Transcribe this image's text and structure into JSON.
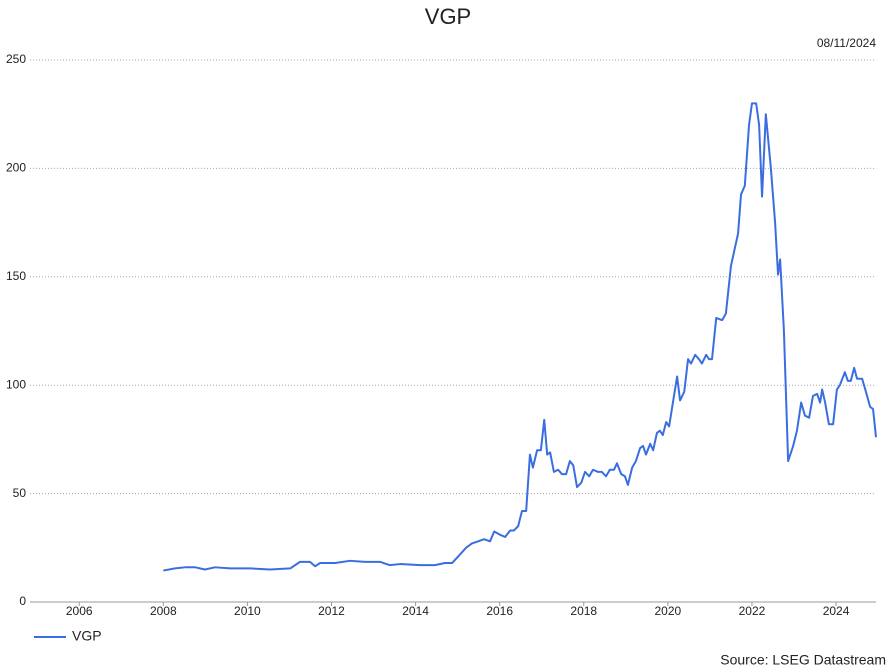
{
  "chart_data": {
    "type": "line",
    "title": "VGP",
    "date": "08/11/2024",
    "source": "Source: LSEG Datastream",
    "x": [
      2008.0,
      2008.28,
      2008.52,
      2008.76,
      2008.99,
      2009.23,
      2009.59,
      2010.07,
      2010.54,
      2011.02,
      2011.25,
      2011.49,
      2011.61,
      2011.73,
      2012.09,
      2012.44,
      2012.8,
      2013.16,
      2013.39,
      2013.63,
      2014.11,
      2014.46,
      2014.7,
      2014.87,
      2015.06,
      2015.2,
      2015.34,
      2015.49,
      2015.63,
      2015.77,
      2015.87,
      2016.01,
      2016.13,
      2016.25,
      2016.34,
      2016.44,
      2016.53,
      2016.63,
      2016.72,
      2016.79,
      2016.89,
      2016.98,
      2017.06,
      2017.13,
      2017.2,
      2017.29,
      2017.39,
      2017.48,
      2017.58,
      2017.67,
      2017.75,
      2017.84,
      2017.94,
      2018.03,
      2018.13,
      2018.22,
      2018.34,
      2018.43,
      2018.53,
      2018.62,
      2018.72,
      2018.79,
      2018.89,
      2018.98,
      2019.05,
      2019.15,
      2019.24,
      2019.34,
      2019.41,
      2019.48,
      2019.58,
      2019.65,
      2019.74,
      2019.81,
      2019.88,
      2019.96,
      2020.03,
      2020.12,
      2020.22,
      2020.29,
      2020.39,
      2020.48,
      2020.55,
      2020.65,
      2020.74,
      2020.81,
      2020.91,
      2020.98,
      2021.05,
      2021.15,
      2021.29,
      2021.38,
      2021.5,
      2021.67,
      2021.74,
      2021.83,
      2021.93,
      2022.0,
      2022.1,
      2022.17,
      2022.24,
      2022.33,
      2022.45,
      2022.55,
      2022.62,
      2022.67,
      2022.76,
      2022.86,
      2022.98,
      2023.07,
      2023.17,
      2023.26,
      2023.36,
      2023.45,
      2023.55,
      2023.62,
      2023.67,
      2023.74,
      2023.83,
      2023.93,
      2024.02,
      2024.09,
      2024.21,
      2024.28,
      2024.35,
      2024.43,
      2024.5,
      2024.62,
      2024.71,
      2024.81,
      2024.88,
      2024.95
    ],
    "series": [
      {
        "name": "VGP",
        "color": "#3a6ee0",
        "values": [
          14.5,
          15.5,
          16,
          16,
          15,
          16,
          15.5,
          15.5,
          15,
          15.5,
          18.5,
          18.5,
          16.5,
          18,
          18,
          19,
          18.5,
          18.5,
          17,
          17.5,
          17,
          17,
          18,
          18,
          22,
          25,
          27,
          28,
          29,
          28,
          32.5,
          31,
          30,
          33,
          33,
          35,
          42,
          42,
          68,
          62,
          70,
          70,
          84,
          68,
          69,
          60,
          61,
          59,
          59,
          65,
          63,
          53,
          55,
          60,
          58,
          61,
          60,
          60,
          58,
          61,
          61,
          64,
          59,
          58,
          54,
          62,
          65,
          71,
          72,
          68,
          73,
          70,
          78,
          79,
          77,
          83,
          81,
          92,
          104,
          93,
          97,
          112,
          110,
          114,
          112,
          110,
          114,
          112,
          112,
          131,
          130,
          133,
          155,
          170,
          188,
          192,
          220,
          230,
          230,
          220,
          187,
          225,
          200,
          175,
          151,
          158,
          125,
          65,
          72,
          79,
          92,
          86,
          85,
          95,
          96,
          92,
          98,
          92,
          82,
          82,
          98,
          100,
          106,
          102,
          102,
          108,
          103,
          103,
          97,
          90,
          89,
          76
        ]
      }
    ],
    "xlim": [
      2004.83,
      2024.95
    ],
    "xticks": [
      2006,
      2008,
      2010,
      2012,
      2014,
      2016,
      2018,
      2020,
      2022,
      2024
    ],
    "ylim": [
      0,
      250
    ],
    "yticks": [
      0,
      50,
      100,
      150,
      200,
      250
    ],
    "grid": true,
    "legend": "bottom-left"
  }
}
